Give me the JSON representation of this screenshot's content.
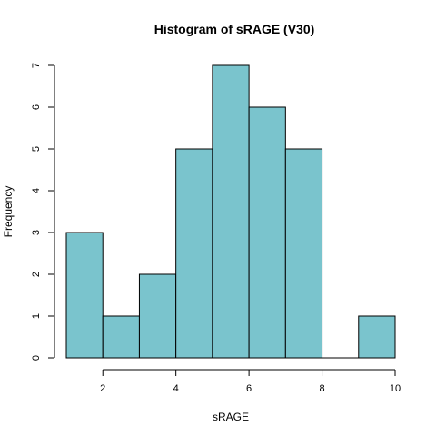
{
  "chart_data": {
    "type": "bar",
    "title": "Histogram of sRAGE (V30)",
    "xlabel": "sRAGE",
    "ylabel": "Frequency",
    "bin_edges": [
      1,
      2,
      3,
      4,
      5,
      6,
      7,
      8,
      9,
      10
    ],
    "counts": [
      3,
      1,
      2,
      5,
      7,
      6,
      5,
      0,
      1
    ],
    "xlim": [
      1,
      10
    ],
    "ylim": [
      0,
      7
    ],
    "x_ticks": [
      2,
      4,
      6,
      8,
      10
    ],
    "y_ticks": [
      0,
      1,
      2,
      3,
      4,
      5,
      6,
      7
    ],
    "bar_color": "#7AC4CD",
    "grid": false,
    "legend": "none"
  }
}
